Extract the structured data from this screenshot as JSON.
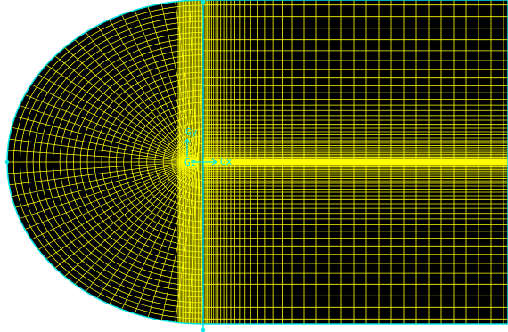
{
  "viewport": {
    "background": "#ffffff",
    "mesh_fill": "#000000",
    "mesh_line_color": "#ffff00",
    "boundary_color": "#00e6e6"
  },
  "axes": {
    "y_label": "Gy",
    "x_label": "Gx",
    "z_label": "Gz",
    "color": "#00e6e6"
  }
}
